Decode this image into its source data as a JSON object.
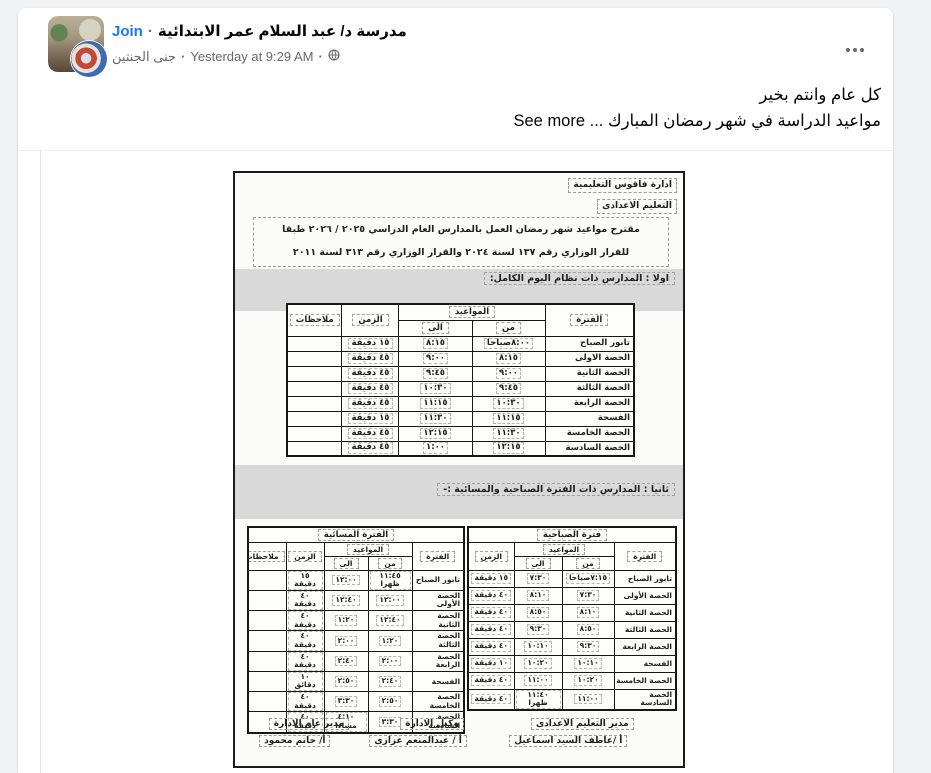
{
  "colors": {
    "page_bg": "#f0f2f5",
    "card_bg": "#ffffff",
    "link_blue": "#1877f2",
    "text_primary": "#050505",
    "text_secondary": "#65676b"
  },
  "header": {
    "group_name": "مدرسة د/ عبد السلام عمر الابتدائية",
    "join_label": "Join",
    "sep": "·",
    "author": "جنى الجنتين",
    "timestamp": "Yesterday at 9:29 AM",
    "privacy_icon": "globe-icon",
    "more_icon": "ellipsis-icon"
  },
  "post": {
    "line1": "كل عام وانتم بخير",
    "line2": "مواعيد الدراسة في شهر رمضان المبارك ...",
    "see_more": "See more"
  },
  "document": {
    "admin_line1": "ادارة فاقوس التعليمية",
    "admin_line2": "التعليم الاعدادى",
    "title_line1": "مقترح مواعيد شهر رمضان العمل بالمدارس العام الدراسي ٢٠٢٥ / ٢٠٢٦ طبقا",
    "title_line2": "للقرار الوزاري رقم ١٣٧ لسنة ٢٠٢٤ والقرار الوزاري رقم ٣١٣ لسنة ٢٠١١",
    "section1_title": "اولا : المدارس ذات نظام اليوم الكامل:",
    "section2_title": "ثانيا : المدارس ذات الفترة الصباحية والمسائية :-",
    "headers": {
      "period": "الفترة",
      "times": "المواعيد",
      "from": "من",
      "to": "الى",
      "duration": "الزمن",
      "notes": "ملاحظات"
    },
    "table1": {
      "rows": [
        {
          "period": "تابور الصباح",
          "from": "٨:٠٠صباحا",
          "to": "٨:١٥",
          "duration": "١٥ دقيقة",
          "notes": ""
        },
        {
          "period": "الحصة الاولى",
          "from": "٨:١٥",
          "to": "٩:٠٠",
          "duration": "٤٥ دقيقة",
          "notes": ""
        },
        {
          "period": "الحصة الثانية",
          "from": "٩:٠٠",
          "to": "٩:٤٥",
          "duration": "٤٥ دقيقة",
          "notes": ""
        },
        {
          "period": "الحصة الثالثة",
          "from": "٩:٤٥",
          "to": "١٠:٣٠",
          "duration": "٤٥ دقيقة",
          "notes": ""
        },
        {
          "period": "الحصة الرابعة",
          "from": "١٠:٣٠",
          "to": "١١:١٥",
          "duration": "٤٥ دقيقة",
          "notes": ""
        },
        {
          "period": "الفسحة",
          "from": "١١:١٥",
          "to": "١١:٣٠",
          "duration": "١٥ دقيقة",
          "notes": ""
        },
        {
          "period": "الحصة الخامسة",
          "from": "١١:٣٠",
          "to": "١٢:١٥",
          "duration": "٤٥ دقيقة",
          "notes": ""
        },
        {
          "period": "الحصة السادسة",
          "from": "١٢:١٥",
          "to": "١:٠٠",
          "duration": "٤٥ دقيقة",
          "notes": ""
        }
      ]
    },
    "morning_table": {
      "title": "فترة الصباحية",
      "rows": [
        {
          "period": "تابور الصباح",
          "from": "٧:١٥صباحا",
          "to": "٧:٣٠",
          "duration": "١٥ دقيقة"
        },
        {
          "period": "الحصة الأولى",
          "from": "٧:٣٠",
          "to": "٨:١٠",
          "duration": "٤٠ دقيقة"
        },
        {
          "period": "الحصة الثانية",
          "from": "٨:١٠",
          "to": "٨:٥٠",
          "duration": "٤٠ دقيقة"
        },
        {
          "period": "الحصة الثالثة",
          "from": "٨:٥٠",
          "to": "٩:٣٠",
          "duration": "٤٠ دقيقة"
        },
        {
          "period": "الحصة الرابعة",
          "from": "٩:٣٠",
          "to": "١٠:١٠",
          "duration": "٤٠ دقيقة"
        },
        {
          "period": "الفسحة",
          "from": "١٠:١٠",
          "to": "١٠:٢٠",
          "duration": "١٠ دقيقة"
        },
        {
          "period": "الحصة الخامسة",
          "from": "١٠:٢٠",
          "to": "١١:٠٠",
          "duration": "٤٠ دقيقة"
        },
        {
          "period": "الحصة السادسة",
          "from": "١١:٠٠",
          "to": "١١:٤٠ ظهرا",
          "duration": "٤٠ دقيقة"
        }
      ]
    },
    "evening_table": {
      "title": "الفترة المسائية",
      "rows": [
        {
          "period": "تابور الصباح",
          "from": "١١:٤٥ ظهرا",
          "to": "١٢:٠٠",
          "duration": "١٥ دقيقة",
          "notes": ""
        },
        {
          "period": "الحصة الأولى",
          "from": "١٢:٠٠",
          "to": "١٢:٤٠",
          "duration": "٤٠ دقيقة",
          "notes": ""
        },
        {
          "period": "الحصة الثانية",
          "from": "١٢:٤٠",
          "to": "١:٢٠",
          "duration": "٤٠ دقيقة",
          "notes": ""
        },
        {
          "period": "الحصة الثالثة",
          "from": "١:٢٠",
          "to": "٢:٠٠",
          "duration": "٤٠ دقيقة",
          "notes": ""
        },
        {
          "period": "الحصة الرابعة",
          "from": "٢:٠٠",
          "to": "٢:٤٠",
          "duration": "٤٠ دقيقة",
          "notes": ""
        },
        {
          "period": "الفسحة",
          "from": "٢:٤٠",
          "to": "٢:٥٠",
          "duration": "١٠ دقائق",
          "notes": ""
        },
        {
          "period": "الحصة الخامسة",
          "from": "٢:٥٠",
          "to": "٣:٣٠",
          "duration": "٤٠ دقيقة",
          "notes": ""
        },
        {
          "period": "الحصة السادسة",
          "from": "٣:٣٠",
          "to": "٤:١٠ مساءا",
          "duration": "٤٠ دقيقة",
          "notes": ""
        }
      ]
    },
    "signatures": [
      {
        "title": "مدير التعليم الاعدادى",
        "name": "أ /عاطف السيد اسماعيل"
      },
      {
        "title": "وكيل الادارة",
        "name": "أ / عبدالمنعم عزازى"
      },
      {
        "title": "مدير عام الادارة",
        "name": "أ/ حاتم محمود"
      }
    ]
  }
}
